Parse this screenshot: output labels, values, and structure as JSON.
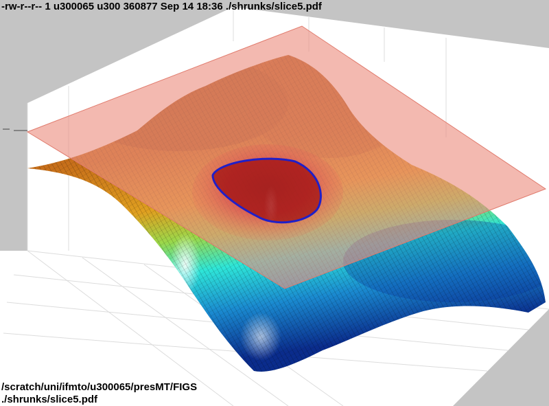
{
  "header": {
    "file_listing": "-rw-r--r-- 1 u300065 u300 360877 Sep 14 18:36 ./shrunks/slice5.pdf"
  },
  "footer": {
    "directory": "/scratch/uni/ifmto/u300065/presMT/FIGS",
    "filename": "./shrunks/slice5.pdf"
  },
  "figure": {
    "type": "3d-surface-with-slice-plane",
    "colormap": "jet",
    "plane_color": "#ec8e80",
    "contour_color": "#1f1fc8",
    "background": "#c4c4c4",
    "axes_box_color": "#ffffff"
  }
}
